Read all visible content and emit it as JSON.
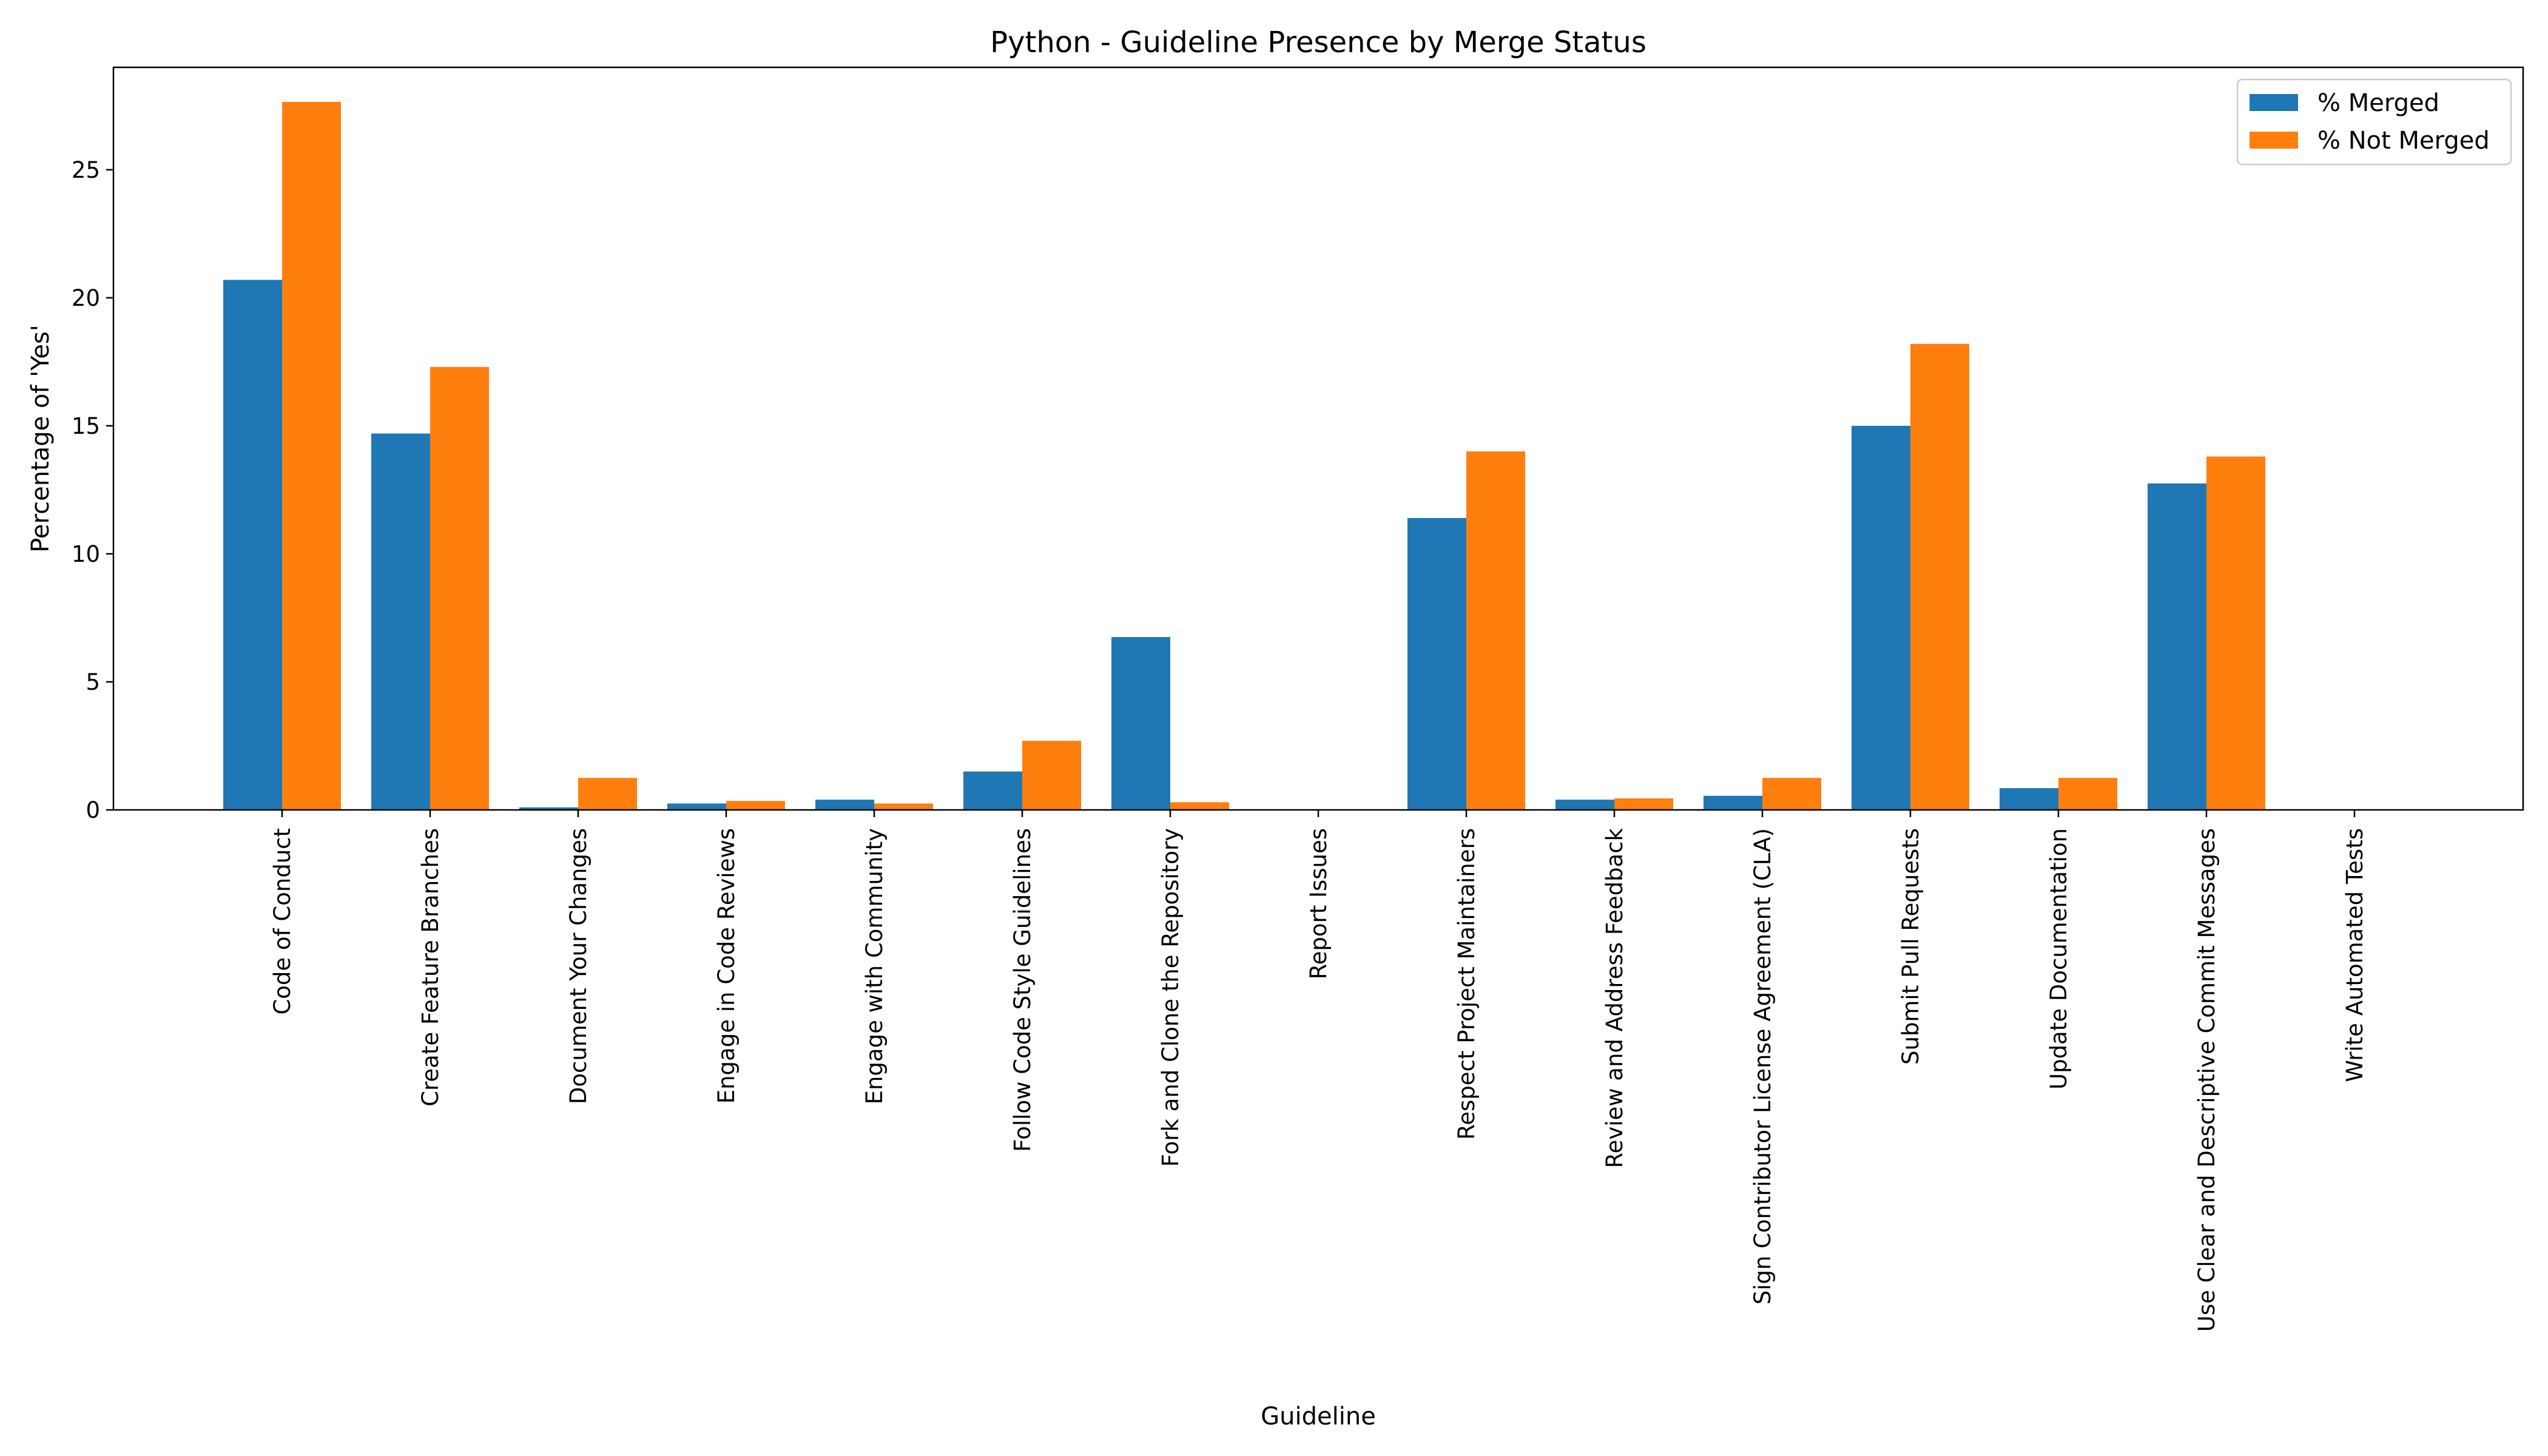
{
  "chart_data": {
    "type": "bar",
    "title": "Python - Guideline Presence by Merge Status",
    "xlabel": "Guideline",
    "ylabel": "Percentage of 'Yes'",
    "ylim": [
      0,
      29
    ],
    "yticks": [
      0,
      5,
      10,
      15,
      20,
      25
    ],
    "grid": false,
    "legend_position": "top-right",
    "categories": [
      "Code of Conduct",
      "Create Feature Branches",
      "Document Your Changes",
      "Engage in Code Reviews",
      "Engage with Community",
      "Follow Code Style Guidelines",
      "Fork and Clone the Repository",
      "Report Issues",
      "Respect Project Maintainers",
      "Review and Address Feedback",
      "Sign Contributor License Agreement (CLA)",
      "Submit Pull Requests",
      "Update Documentation",
      "Use Clear and Descriptive Commit Messages",
      "Write Automated Tests"
    ],
    "series": [
      {
        "name": "% Merged",
        "color": "#1f77b4",
        "values": [
          20.7,
          14.7,
          0.1,
          0.25,
          0.4,
          1.5,
          6.75,
          0,
          11.4,
          0.4,
          0.55,
          15.0,
          0.85,
          12.75,
          0
        ]
      },
      {
        "name": "% Not Merged",
        "color": "#ff7f0e",
        "values": [
          27.65,
          17.3,
          1.25,
          0.35,
          0.25,
          2.7,
          0.3,
          0,
          14.0,
          0.45,
          1.25,
          18.2,
          1.25,
          13.8,
          0
        ]
      }
    ]
  }
}
